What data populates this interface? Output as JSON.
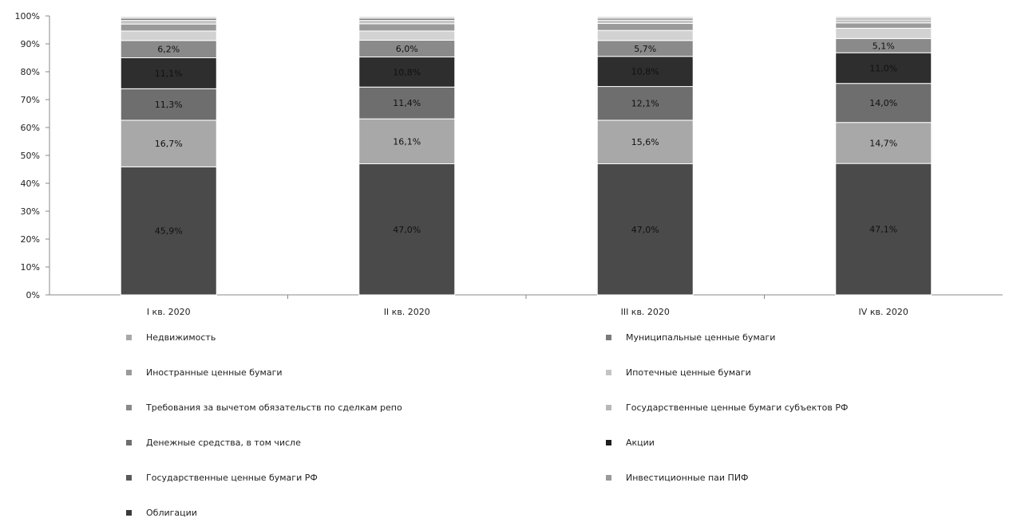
{
  "chart_data": {
    "type": "bar",
    "stacked": true,
    "percent": true,
    "categories": [
      "I кв. 2020",
      "II кв. 2020",
      "III кв. 2020",
      "IV кв. 2020"
    ],
    "ylim": [
      0,
      100
    ],
    "yticks": [
      "0%",
      "10%",
      "20%",
      "30%",
      "40%",
      "50%",
      "60%",
      "70%",
      "80%",
      "90%",
      "100%"
    ],
    "series": [
      {
        "name": "Облигации",
        "color": "#4a4a4a",
        "values": [
          45.9,
          47.0,
          47.0,
          47.1
        ],
        "labels": [
          "45,9%",
          "47,0%",
          "47,0%",
          "47,1%"
        ]
      },
      {
        "name": "Государственные ценные бумаги РФ",
        "color": "#a8a8a8",
        "values": [
          16.7,
          16.1,
          15.6,
          14.7
        ],
        "labels": [
          "16,7%",
          "16,1%",
          "15,6%",
          "14,7%"
        ]
      },
      {
        "name": "Денежные средства, в том числе",
        "color": "#6e6e6e",
        "values": [
          11.3,
          11.4,
          12.1,
          14.0
        ],
        "labels": [
          "11,3%",
          "11,4%",
          "12,1%",
          "14,0%"
        ]
      },
      {
        "name": "Акции",
        "color": "#2e2e2e",
        "values": [
          11.1,
          10.8,
          10.8,
          11.0
        ],
        "labels": [
          "11,1%",
          "10,8%",
          "10,8%",
          "11,0%"
        ]
      },
      {
        "name": "Требования за вычетом обязательств по сделкам репо",
        "color": "#8a8a8a",
        "values": [
          6.2,
          6.0,
          5.7,
          5.1
        ],
        "labels": [
          "6,2%",
          "6,0%",
          "5,7%",
          "5,1%"
        ]
      },
      {
        "name": "Государственные ценные бумаги субъектов РФ",
        "color": "#d2d2d2",
        "values": [
          3.4,
          3.3,
          3.6,
          3.7
        ],
        "labels": [
          "",
          "",
          "",
          ""
        ]
      },
      {
        "name": "Иностранные ценные бумаги",
        "color": "#9a9a9a",
        "values": [
          2.5,
          2.6,
          2.5,
          1.9
        ],
        "labels": [
          "",
          "",
          "",
          ""
        ]
      },
      {
        "name": "Ипотечные ценные бумаги",
        "color": "#c4c4c4",
        "values": [
          1.3,
          1.2,
          1.2,
          1.1
        ],
        "labels": [
          "",
          "",
          "",
          ""
        ]
      },
      {
        "name": "Инвестиционные паи ПИФ",
        "color": "#808080",
        "values": [
          0.8,
          0.8,
          0.7,
          0.6
        ],
        "labels": [
          "",
          "",
          "",
          ""
        ]
      },
      {
        "name": "Муниципальные ценные бумаги",
        "color": "#b4b4b4",
        "values": [
          0.5,
          0.5,
          0.5,
          0.5
        ],
        "labels": [
          "",
          "",
          "",
          ""
        ]
      },
      {
        "name": "Недвижимость",
        "color": "#e0e0e0",
        "values": [
          0.3,
          0.3,
          0.3,
          0.3
        ],
        "labels": [
          "",
          "",
          "",
          ""
        ]
      }
    ],
    "legend": {
      "placement": "bottom",
      "left_column": [
        {
          "name": "Недвижимость",
          "color": "#a8a8a8"
        },
        {
          "name": "Иностранные ценные бумаги",
          "color": "#9a9a9a"
        },
        {
          "name": "Требования за вычетом обязательств по сделкам репо",
          "color": "#8a8a8a"
        },
        {
          "name": "Денежные средства, в том числе",
          "color": "#6e6e6e"
        },
        {
          "name": "Государственные ценные бумаги РФ",
          "color": "#5a5a5a"
        },
        {
          "name": "Облигации",
          "color": "#3a3a3a"
        }
      ],
      "right_column": [
        {
          "name": "Муниципальные ценные бумаги",
          "color": "#7a7a7a"
        },
        {
          "name": "Ипотечные ценные бумаги",
          "color": "#c4c4c4"
        },
        {
          "name": "Государственные ценные бумаги субъектов РФ",
          "color": "#b8b8b8"
        },
        {
          "name": "Акции",
          "color": "#1e1e1e"
        },
        {
          "name": "Инвестиционные паи ПИФ",
          "color": "#9a9a9a"
        }
      ]
    },
    "grid": false
  }
}
